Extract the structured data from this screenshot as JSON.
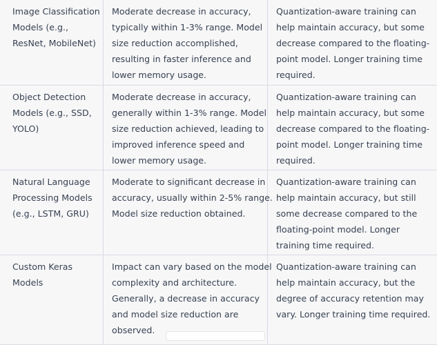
{
  "table": {
    "rows": [
      [
        [
          "Image Classification",
          "Models (e.g.,",
          "ResNet, MobileNet)"
        ],
        [
          "Moderate decrease in accuracy,",
          "typically within 1-3% range. Model",
          "size reduction accomplished,",
          "resulting in faster inference and",
          "lower memory usage."
        ],
        [
          "Quantization-aware training can",
          "help maintain accuracy, but some",
          "decrease compared to the floating-",
          "point model. Longer training time",
          "required."
        ]
      ],
      [
        [
          "Object Detection",
          "Models (e.g., SSD,",
          "YOLO)"
        ],
        [
          "Moderate decrease in accuracy,",
          "generally within 1-3% range. Model",
          "size reduction achieved, leading to",
          "improved inference speed and",
          "lower memory usage."
        ],
        [
          "Quantization-aware training can",
          "help maintain accuracy, but some",
          "decrease compared to the floating-",
          "point model. Longer training time",
          "required."
        ]
      ],
      [
        [
          "Natural Language",
          "Processing Models",
          "(e.g., LSTM, GRU)"
        ],
        [
          "Moderate to significant decrease in",
          "accuracy, usually within 2-5% range.",
          "Model size reduction obtained."
        ],
        [
          "Quantization-aware training can",
          "help maintain accuracy, but still",
          "some decrease compared to the",
          "floating-point model. Longer",
          "training time required."
        ]
      ],
      [
        [
          "Custom Keras",
          "Models"
        ],
        [
          "Impact can vary based on the model",
          "complexity and architecture.",
          "Generally, a decrease in accuracy",
          "and model size reduction are",
          "observed."
        ],
        [
          "Quantization-aware training can",
          "help maintain accuracy, but the",
          "degree of accuracy retention may",
          "vary. Longer training time required."
        ]
      ]
    ]
  }
}
